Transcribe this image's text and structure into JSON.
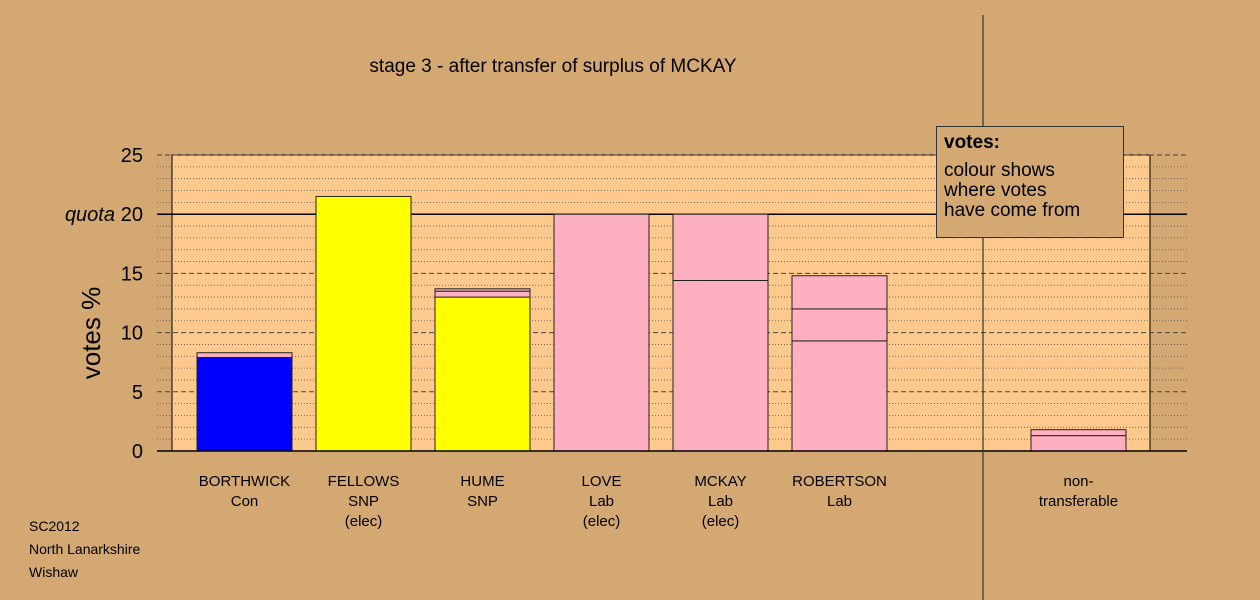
{
  "chart_data": {
    "type": "bar",
    "title": "stage 3 - after transfer of surplus of MCKAY",
    "ylabel": "votes %",
    "ylim": [
      0,
      25
    ],
    "yticks": [
      0,
      5,
      10,
      15,
      20,
      25
    ],
    "quota": {
      "label": "quota",
      "value": 20
    },
    "grid": "dashed horizontal",
    "categories": [
      {
        "lines": [
          "BORTHWICK",
          "Con"
        ],
        "segments": [
          {
            "value": 7.9,
            "color": "#0000ff"
          },
          {
            "value": 0.4,
            "color": "#ffb0c0"
          }
        ]
      },
      {
        "lines": [
          "FELLOWS",
          "SNP",
          "(elec)"
        ],
        "segments": [
          {
            "value": 21.5,
            "color": "#ffff00"
          }
        ]
      },
      {
        "lines": [
          "HUME",
          "SNP"
        ],
        "segments": [
          {
            "value": 13.0,
            "color": "#ffff00"
          },
          {
            "value": 0.5,
            "color": "#ffb0c0"
          },
          {
            "value": 0.2,
            "color": "#ffb0c0"
          }
        ]
      },
      {
        "lines": [
          "LOVE",
          "Lab",
          "(elec)"
        ],
        "segments": [
          {
            "value": 20.0,
            "color": "#ffb0c0"
          }
        ]
      },
      {
        "lines": [
          "MCKAY",
          "Lab",
          "(elec)"
        ],
        "segments": [
          {
            "value": 14.4,
            "color": "#ffb0c0"
          },
          {
            "value": 5.6,
            "color": "#ffb0c0"
          }
        ]
      },
      {
        "lines": [
          "ROBERTSON",
          "Lab"
        ],
        "segments": [
          {
            "value": 9.3,
            "color": "#ffb0c0"
          },
          {
            "value": 2.7,
            "color": "#ffb0c0"
          },
          {
            "value": 2.8,
            "color": "#ffb0c0"
          }
        ]
      }
    ],
    "nontransferable": {
      "lines": [
        "non-",
        "transferable"
      ],
      "segments": [
        {
          "value": 1.3,
          "color": "#ffb0c0"
        },
        {
          "value": 0.5,
          "color": "#ffb0c0"
        }
      ]
    },
    "legend": {
      "title": "votes:",
      "lines": [
        "colour shows",
        "where votes",
        "have come from"
      ],
      "position": "top-right"
    }
  },
  "footer": [
    "SC2012",
    "North Lanarkshire",
    "Wishaw"
  ],
  "colors": {
    "background": "#d4a872",
    "plot_area": "#fec98c",
    "con": "#0000ff",
    "snp": "#ffff00",
    "lab": "#ffb0c0"
  }
}
